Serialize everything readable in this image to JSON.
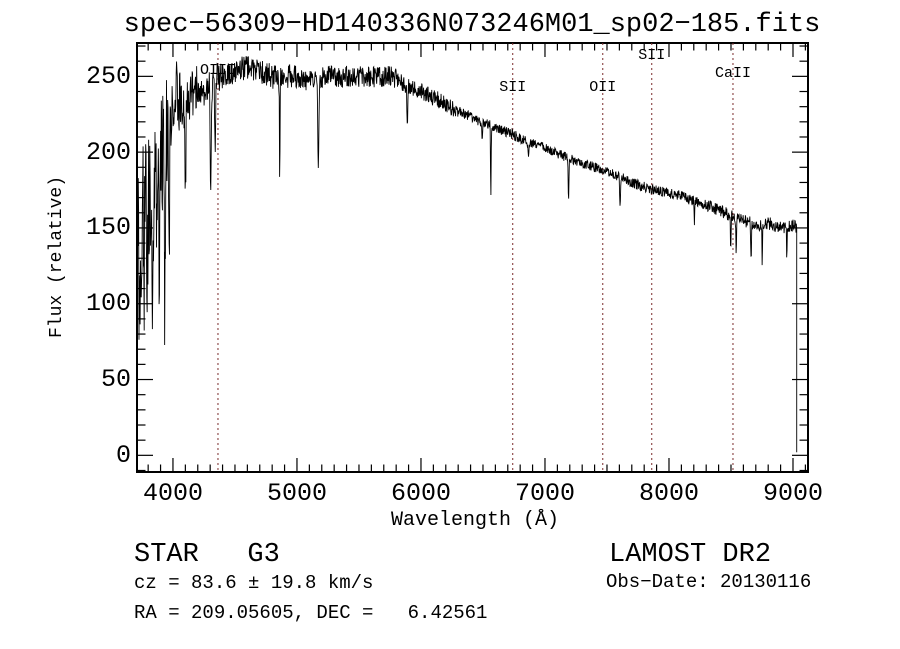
{
  "plot": {
    "title": "spec−56309−HD140336N073246M01_sp02−185.fits"
  },
  "chart_data": {
    "type": "line",
    "title": "spec−56309−HD140336N073246M01_sp02−185.fits",
    "xlabel": "Wavelength (Å)",
    "ylabel": "Flux (relative)",
    "xlim": [
      3710,
      9121
    ],
    "ylim": [
      -11,
      272
    ],
    "x_major_ticks": [
      4000,
      5000,
      6000,
      7000,
      8000,
      9000
    ],
    "x_minor_step": 100,
    "y_major_ticks": [
      0,
      50,
      100,
      150,
      200,
      250
    ],
    "y_minor_step": 10,
    "grid": false,
    "legend": "none",
    "line_color": "#000000",
    "marker_color": "#7a2b2b",
    "spectral_line_markers": [
      {
        "label": "OIII",
        "wavelength": 4363,
        "label_top": 63
      },
      {
        "label": "SII",
        "wavelength": 6740,
        "label_top": 80
      },
      {
        "label": "OII",
        "wavelength": 7466,
        "label_top": 80
      },
      {
        "label": "SII",
        "wavelength": 7861,
        "label_top": 48
      },
      {
        "label": "CaII",
        "wavelength": 8516,
        "label_top": 66
      }
    ],
    "spectrum": {
      "wavelength_range": [
        3690,
        9030
      ],
      "sample_step": 3,
      "seed": 20130116,
      "end_drop_flux": 2,
      "continuum_anchors": [
        [
          3690,
          115
        ],
        [
          3720,
          125
        ],
        [
          3760,
          150
        ],
        [
          3800,
          170
        ],
        [
          3840,
          165
        ],
        [
          3880,
          185
        ],
        [
          3920,
          205
        ],
        [
          3960,
          220
        ],
        [
          4000,
          232
        ],
        [
          4040,
          238
        ],
        [
          4080,
          228
        ],
        [
          4120,
          235
        ],
        [
          4160,
          240
        ],
        [
          4200,
          241
        ],
        [
          4240,
          237
        ],
        [
          4280,
          243
        ],
        [
          4320,
          246
        ],
        [
          4360,
          249
        ],
        [
          4400,
          250
        ],
        [
          4450,
          252
        ],
        [
          4500,
          253
        ],
        [
          4550,
          255
        ],
        [
          4600,
          256
        ],
        [
          4650,
          254
        ],
        [
          4700,
          253
        ],
        [
          4750,
          252
        ],
        [
          4800,
          250
        ],
        [
          4860,
          248
        ],
        [
          4900,
          249
        ],
        [
          4950,
          250
        ],
        [
          5000,
          250
        ],
        [
          5050,
          248
        ],
        [
          5100,
          247
        ],
        [
          5150,
          248
        ],
        [
          5200,
          249
        ],
        [
          5250,
          250
        ],
        [
          5300,
          251
        ],
        [
          5350,
          249
        ],
        [
          5400,
          250
        ],
        [
          5450,
          249
        ],
        [
          5500,
          250
        ],
        [
          5550,
          249
        ],
        [
          5600,
          250
        ],
        [
          5650,
          249
        ],
        [
          5700,
          250
        ],
        [
          5750,
          250
        ],
        [
          5800,
          248
        ],
        [
          5850,
          246
        ],
        [
          5900,
          243
        ],
        [
          5950,
          242
        ],
        [
          6000,
          240
        ],
        [
          6050,
          238
        ],
        [
          6100,
          236
        ],
        [
          6150,
          234
        ],
        [
          6200,
          231
        ],
        [
          6250,
          229
        ],
        [
          6300,
          227
        ],
        [
          6350,
          225
        ],
        [
          6400,
          223
        ],
        [
          6450,
          221
        ],
        [
          6500,
          219
        ],
        [
          6550,
          218
        ],
        [
          6600,
          216
        ],
        [
          6650,
          214
        ],
        [
          6700,
          213
        ],
        [
          6750,
          211
        ],
        [
          6800,
          209
        ],
        [
          6850,
          207
        ],
        [
          6900,
          206
        ],
        [
          6950,
          204
        ],
        [
          7000,
          203
        ],
        [
          7100,
          199
        ],
        [
          7200,
          196
        ],
        [
          7300,
          193
        ],
        [
          7400,
          190
        ],
        [
          7500,
          187
        ],
        [
          7600,
          184
        ],
        [
          7700,
          180
        ],
        [
          7800,
          177
        ],
        [
          7900,
          175
        ],
        [
          8000,
          173
        ],
        [
          8100,
          171
        ],
        [
          8200,
          168
        ],
        [
          8300,
          165
        ],
        [
          8400,
          162
        ],
        [
          8500,
          158
        ],
        [
          8600,
          155
        ],
        [
          8700,
          152
        ],
        [
          8800,
          153
        ],
        [
          8900,
          151
        ],
        [
          8950,
          150
        ],
        [
          9000,
          152
        ],
        [
          9030,
          150
        ]
      ],
      "absorption_features": [
        [
          3797,
          60,
          5
        ],
        [
          3835,
          55,
          5
        ],
        [
          3889,
          80,
          5
        ],
        [
          3934,
          110,
          6
        ],
        [
          3969,
          95,
          6
        ],
        [
          4101,
          60,
          5
        ],
        [
          4305,
          70,
          6
        ],
        [
          4340,
          50,
          5
        ],
        [
          4861,
          62,
          3.5
        ],
        [
          5172,
          54,
          6
        ],
        [
          5890,
          22,
          5
        ],
        [
          6494,
          12,
          4
        ],
        [
          6563,
          46,
          3.5
        ],
        [
          6867,
          12,
          5
        ],
        [
          7190,
          26,
          5
        ],
        [
          7605,
          22,
          5
        ],
        [
          8205,
          14,
          4
        ],
        [
          8498,
          20,
          4
        ],
        [
          8542,
          26,
          4
        ],
        [
          8662,
          24,
          4
        ],
        [
          8752,
          28,
          3
        ],
        [
          8950,
          20,
          3
        ]
      ],
      "noise_sigma_regions": [
        [
          3690,
          3760,
          62
        ],
        [
          3760,
          3860,
          48
        ],
        [
          3860,
          3960,
          38
        ],
        [
          3960,
          4060,
          25
        ],
        [
          4060,
          4200,
          16
        ],
        [
          4200,
          4400,
          10
        ],
        [
          4400,
          5000,
          8
        ],
        [
          5000,
          5800,
          7
        ],
        [
          5800,
          6300,
          5.5
        ],
        [
          6300,
          6800,
          3.5
        ],
        [
          6800,
          7600,
          3.2
        ],
        [
          7600,
          8300,
          3.4
        ],
        [
          8300,
          9040,
          4.2
        ]
      ],
      "extra_spike_regions": [
        [
          3690,
          3920,
          0.12,
          80
        ],
        [
          3920,
          4150,
          0.06,
          70
        ],
        [
          4200,
          4400,
          0.02,
          30
        ]
      ]
    }
  },
  "annotations": {
    "class_label": "STAR   G3",
    "survey": "LAMOST DR2",
    "cz": "cz = 83.6 ± 19.8 km/s",
    "obs_date": "Obs−Date: 20130116",
    "ra_dec": "RA = 209.05605, DEC =   6.42561"
  }
}
